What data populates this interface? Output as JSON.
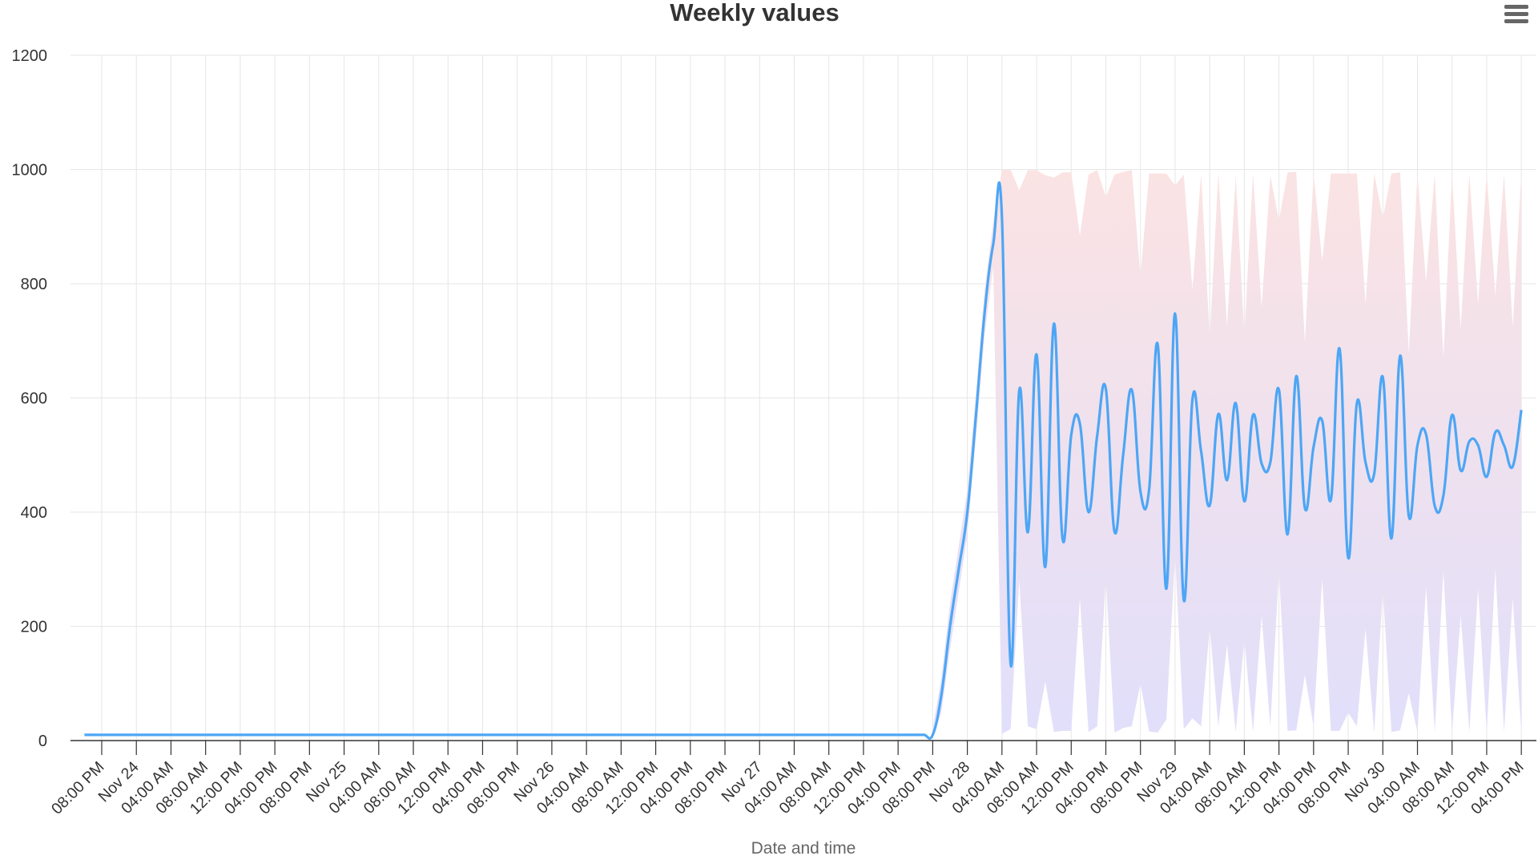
{
  "title": "Weekly values",
  "menu_icon": "hamburger-menu-icon",
  "chart_data": {
    "type": "line",
    "title": "Weekly values",
    "xlabel": "Date and time",
    "ylabel": "",
    "ylim": [
      0,
      1200
    ],
    "yticks": [
      0,
      200,
      400,
      600,
      800,
      1000,
      1200
    ],
    "xticks": [
      "08:00 PM",
      "Nov 24",
      "04:00 AM",
      "08:00 AM",
      "12:00 PM",
      "04:00 PM",
      "08:00 PM",
      "Nov 25",
      "04:00 AM",
      "08:00 AM",
      "12:00 PM",
      "04:00 PM",
      "08:00 PM",
      "Nov 26",
      "04:00 AM",
      "08:00 AM",
      "12:00 PM",
      "04:00 PM",
      "08:00 PM",
      "Nov 27",
      "04:00 AM",
      "08:00 AM",
      "12:00 PM",
      "04:00 PM",
      "08:00 PM",
      "Nov 28",
      "04:00 AM",
      "08:00 AM",
      "12:00 PM",
      "04:00 PM",
      "08:00 PM",
      "Nov 29",
      "04:00 AM",
      "08:00 AM",
      "12:00 PM",
      "04:00 PM",
      "08:00 PM",
      "Nov 30",
      "04:00 AM",
      "08:00 AM",
      "12:00 PM",
      "04:00 PM"
    ],
    "xrange": [
      "Nov 23 20:00",
      "Nov 30 16:00"
    ],
    "grid": {
      "x": true,
      "y": true
    },
    "legend": "none",
    "colors": {
      "line": "#4da6f5",
      "band_top": "#fbe3e3",
      "band_bottom": "#e1dffb",
      "grid": "#e6e6e6",
      "axis": "#333333"
    },
    "series": [
      {
        "type": "spline",
        "points": [
          [
            "Nov 23 18:00",
            10
          ],
          [
            "Nov 23 19:00",
            10
          ],
          [
            "Nov 23 20:00",
            10
          ],
          [
            "Nov 23 21:00",
            10
          ],
          [
            "Nov 23 22:00",
            10
          ],
          [
            "Nov 23 23:00",
            10
          ],
          [
            "Nov 24 00:00",
            10
          ],
          [
            "Nov 24 01:00",
            10
          ],
          [
            "Nov 24 02:00",
            10
          ],
          [
            "Nov 24 03:00",
            10
          ],
          [
            "Nov 24 04:00",
            10
          ],
          [
            "Nov 24 05:00",
            10
          ],
          [
            "Nov 24 06:00",
            10
          ],
          [
            "Nov 24 07:00",
            10
          ],
          [
            "Nov 24 08:00",
            10
          ],
          [
            "Nov 24 09:00",
            10
          ],
          [
            "Nov 24 10:00",
            10
          ],
          [
            "Nov 24 11:00",
            10
          ],
          [
            "Nov 24 12:00",
            10
          ],
          [
            "Nov 24 13:00",
            10
          ],
          [
            "Nov 24 14:00",
            10
          ],
          [
            "Nov 24 15:00",
            10
          ],
          [
            "Nov 24 16:00",
            10
          ],
          [
            "Nov 24 17:00",
            10
          ],
          [
            "Nov 24 18:00",
            10
          ],
          [
            "Nov 24 19:00",
            10
          ],
          [
            "Nov 24 20:00",
            10
          ],
          [
            "Nov 24 21:00",
            10
          ],
          [
            "Nov 24 22:00",
            10
          ],
          [
            "Nov 24 23:00",
            10
          ],
          [
            "Nov 25 00:00",
            10
          ],
          [
            "Nov 25 01:00",
            10
          ],
          [
            "Nov 25 02:00",
            10
          ],
          [
            "Nov 25 03:00",
            10
          ],
          [
            "Nov 25 04:00",
            10
          ],
          [
            "Nov 25 05:00",
            10
          ],
          [
            "Nov 25 06:00",
            10
          ],
          [
            "Nov 25 07:00",
            10
          ],
          [
            "Nov 25 08:00",
            10
          ],
          [
            "Nov 25 09:00",
            10
          ],
          [
            "Nov 25 10:00",
            10
          ],
          [
            "Nov 25 11:00",
            10
          ],
          [
            "Nov 25 12:00",
            10
          ],
          [
            "Nov 25 13:00",
            10
          ],
          [
            "Nov 25 14:00",
            10
          ],
          [
            "Nov 25 15:00",
            10
          ],
          [
            "Nov 25 16:00",
            10
          ],
          [
            "Nov 25 17:00",
            10
          ],
          [
            "Nov 25 18:00",
            10
          ],
          [
            "Nov 25 19:00",
            10
          ],
          [
            "Nov 25 20:00",
            10
          ],
          [
            "Nov 25 21:00",
            10
          ],
          [
            "Nov 25 22:00",
            10
          ],
          [
            "Nov 25 23:00",
            10
          ],
          [
            "Nov 26 00:00",
            10
          ],
          [
            "Nov 26 01:00",
            10
          ],
          [
            "Nov 26 02:00",
            10
          ],
          [
            "Nov 26 03:00",
            10
          ],
          [
            "Nov 26 04:00",
            10
          ],
          [
            "Nov 26 05:00",
            10
          ],
          [
            "Nov 26 06:00",
            10
          ],
          [
            "Nov 26 07:00",
            10
          ],
          [
            "Nov 26 08:00",
            10
          ],
          [
            "Nov 26 09:00",
            10
          ],
          [
            "Nov 26 10:00",
            10
          ],
          [
            "Nov 26 11:00",
            10
          ],
          [
            "Nov 26 12:00",
            10
          ],
          [
            "Nov 26 13:00",
            10
          ],
          [
            "Nov 26 14:00",
            10
          ],
          [
            "Nov 26 15:00",
            10
          ],
          [
            "Nov 26 16:00",
            10
          ],
          [
            "Nov 26 17:00",
            10
          ],
          [
            "Nov 26 18:00",
            10
          ],
          [
            "Nov 26 19:00",
            10
          ],
          [
            "Nov 26 20:00",
            10
          ],
          [
            "Nov 26 21:00",
            10
          ],
          [
            "Nov 26 22:00",
            10
          ],
          [
            "Nov 26 23:00",
            10
          ],
          [
            "Nov 27 00:00",
            10
          ],
          [
            "Nov 27 01:00",
            10
          ],
          [
            "Nov 27 02:00",
            10
          ],
          [
            "Nov 27 03:00",
            10
          ],
          [
            "Nov 27 04:00",
            10
          ],
          [
            "Nov 27 05:00",
            10
          ],
          [
            "Nov 27 06:00",
            10
          ],
          [
            "Nov 27 07:00",
            10
          ],
          [
            "Nov 27 08:00",
            10
          ],
          [
            "Nov 27 09:00",
            10
          ],
          [
            "Nov 27 10:00",
            10
          ],
          [
            "Nov 27 11:00",
            10
          ],
          [
            "Nov 27 12:00",
            10
          ],
          [
            "Nov 27 13:00",
            10
          ],
          [
            "Nov 27 14:00",
            10
          ],
          [
            "Nov 27 15:00",
            10
          ],
          [
            "Nov 27 16:00",
            10
          ],
          [
            "Nov 27 17:00",
            10
          ],
          [
            "Nov 27 18:00",
            10
          ],
          [
            "Nov 27 19:00",
            10
          ],
          [
            "Nov 27 20:00",
            10
          ],
          [
            "Nov 27 21:00",
            80
          ],
          [
            "Nov 27 22:00",
            200
          ],
          [
            "Nov 27 23:00",
            300
          ],
          [
            "Nov 28 00:00",
            400
          ],
          [
            "Nov 28 01:00",
            570
          ],
          [
            "Nov 28 02:00",
            750
          ],
          [
            "Nov 28 03:00",
            870
          ],
          [
            "Nov 28 04:00",
            916
          ],
          [
            "Nov 28 05:00",
            135
          ],
          [
            "Nov 28 06:00",
            613
          ],
          [
            "Nov 28 07:00",
            365
          ],
          [
            "Nov 28 08:00",
            676
          ],
          [
            "Nov 28 09:00",
            304
          ],
          [
            "Nov 28 10:00",
            730
          ],
          [
            "Nov 28 11:00",
            353
          ],
          [
            "Nov 28 12:00",
            535
          ],
          [
            "Nov 28 13:00",
            555
          ],
          [
            "Nov 28 14:00",
            400
          ],
          [
            "Nov 28 15:00",
            534
          ],
          [
            "Nov 28 16:00",
            616
          ],
          [
            "Nov 28 17:00",
            366
          ],
          [
            "Nov 28 18:00",
            500
          ],
          [
            "Nov 28 19:00",
            614
          ],
          [
            "Nov 28 20:00",
            436
          ],
          [
            "Nov 28 21:00",
            439
          ],
          [
            "Nov 28 22:00",
            693
          ],
          [
            "Nov 28 23:00",
            266
          ],
          [
            "Nov 29 00:00",
            748
          ],
          [
            "Nov 29 01:00",
            246
          ],
          [
            "Nov 29 02:00",
            597
          ],
          [
            "Nov 29 03:00",
            507
          ],
          [
            "Nov 29 04:00",
            412
          ],
          [
            "Nov 29 05:00",
            572
          ],
          [
            "Nov 29 06:00",
            456
          ],
          [
            "Nov 29 07:00",
            591
          ],
          [
            "Nov 29 08:00",
            419
          ],
          [
            "Nov 29 09:00",
            570
          ],
          [
            "Nov 29 10:00",
            485
          ],
          [
            "Nov 29 11:00",
            487
          ],
          [
            "Nov 29 12:00",
            614
          ],
          [
            "Nov 29 13:00",
            361
          ],
          [
            "Nov 29 14:00",
            638
          ],
          [
            "Nov 29 15:00",
            407
          ],
          [
            "Nov 29 16:00",
            514
          ],
          [
            "Nov 29 17:00",
            560
          ],
          [
            "Nov 29 18:00",
            422
          ],
          [
            "Nov 29 19:00",
            686
          ],
          [
            "Nov 29 20:00",
            320
          ],
          [
            "Nov 29 21:00",
            591
          ],
          [
            "Nov 29 22:00",
            487
          ],
          [
            "Nov 29 23:00",
            467
          ],
          [
            "Nov 30 00:00",
            636
          ],
          [
            "Nov 30 01:00",
            354
          ],
          [
            "Nov 30 02:00",
            674
          ],
          [
            "Nov 30 03:00",
            393
          ],
          [
            "Nov 30 04:00",
            517
          ],
          [
            "Nov 30 05:00",
            536
          ],
          [
            "Nov 30 06:00",
            411
          ],
          [
            "Nov 30 07:00",
            429
          ],
          [
            "Nov 30 08:00",
            570
          ],
          [
            "Nov 30 09:00",
            473
          ],
          [
            "Nov 30 10:00",
            524
          ],
          [
            "Nov 30 11:00",
            517
          ],
          [
            "Nov 30 12:00",
            462
          ],
          [
            "Nov 30 13:00",
            540
          ],
          [
            "Nov 30 14:00",
            517
          ],
          [
            "Nov 30 15:00",
            480
          ],
          [
            "Nov 30 16:00",
            579
          ]
        ]
      },
      {
        "type": "arearange",
        "points": [
          [
            "Nov 27 20:00",
            5,
            20
          ],
          [
            "Nov 27 21:00",
            50,
            110
          ],
          [
            "Nov 27 22:00",
            160,
            240
          ],
          [
            "Nov 27 23:00",
            260,
            340
          ],
          [
            "Nov 28 00:00",
            360,
            440
          ],
          [
            "Nov 28 01:00",
            530,
            610
          ],
          [
            "Nov 28 02:00",
            710,
            790
          ],
          [
            "Nov 28 03:00",
            830,
            910
          ],
          [
            "Nov 28 04:00",
            12,
            999
          ],
          [
            "Nov 28 05:00",
            20,
            1000
          ],
          [
            "Nov 28 06:00",
            280,
            964
          ],
          [
            "Nov 28 07:00",
            25,
            999
          ],
          [
            "Nov 28 08:00",
            20,
            999
          ],
          [
            "Nov 28 09:00",
            103,
            990
          ],
          [
            "Nov 28 10:00",
            15,
            986
          ],
          [
            "Nov 28 11:00",
            17,
            995
          ],
          [
            "Nov 28 12:00",
            17,
            995
          ],
          [
            "Nov 28 13:00",
            249,
            884
          ],
          [
            "Nov 28 14:00",
            15,
            991
          ],
          [
            "Nov 28 15:00",
            25,
            999
          ],
          [
            "Nov 28 16:00",
            283,
            952
          ],
          [
            "Nov 28 17:00",
            14,
            991
          ],
          [
            "Nov 28 18:00",
            22,
            996
          ],
          [
            "Nov 28 19:00",
            25,
            999
          ],
          [
            "Nov 28 20:00",
            100,
            813
          ],
          [
            "Nov 28 21:00",
            16,
            993
          ],
          [
            "Nov 28 22:00",
            14,
            993
          ],
          [
            "Nov 28 23:00",
            37,
            993
          ],
          [
            "Nov 29 00:00",
            324,
            972
          ],
          [
            "Nov 29 01:00",
            20,
            991
          ],
          [
            "Nov 29 02:00",
            39,
            789
          ],
          [
            "Nov 29 03:00",
            25,
            993
          ],
          [
            "Nov 29 04:00",
            198,
            704
          ],
          [
            "Nov 29 05:00",
            25,
            996
          ],
          [
            "Nov 29 06:00",
            168,
            725
          ],
          [
            "Nov 29 07:00",
            15,
            989
          ],
          [
            "Nov 29 08:00",
            175,
            711
          ],
          [
            "Nov 29 09:00",
            15,
            993
          ],
          [
            "Nov 29 10:00",
            219,
            759
          ],
          [
            "Nov 29 11:00",
            25,
            989
          ],
          [
            "Nov 29 12:00",
            297,
            911
          ],
          [
            "Nov 29 13:00",
            17,
            995
          ],
          [
            "Nov 29 14:00",
            18,
            996
          ],
          [
            "Nov 29 15:00",
            115,
            697
          ],
          [
            "Nov 29 16:00",
            25,
            993
          ],
          [
            "Nov 29 17:00",
            283,
            840
          ],
          [
            "Nov 29 18:00",
            17,
            993
          ],
          [
            "Nov 29 19:00",
            17,
            993
          ],
          [
            "Nov 29 20:00",
            49,
            993
          ],
          [
            "Nov 29 21:00",
            25,
            993
          ],
          [
            "Nov 29 22:00",
            195,
            765
          ],
          [
            "Nov 29 23:00",
            14,
            993
          ],
          [
            "Nov 30 00:00",
            263,
            915
          ],
          [
            "Nov 30 01:00",
            15,
            993
          ],
          [
            "Nov 30 02:00",
            18,
            995
          ],
          [
            "Nov 30 03:00",
            83,
            677
          ],
          [
            "Nov 30 04:00",
            15,
            993
          ],
          [
            "Nov 30 05:00",
            270,
            803
          ],
          [
            "Nov 30 06:00",
            15,
            993
          ],
          [
            "Nov 30 07:00",
            297,
            670
          ],
          [
            "Nov 30 08:00",
            15,
            993
          ],
          [
            "Nov 30 09:00",
            219,
            721
          ],
          [
            "Nov 30 10:00",
            15,
            993
          ],
          [
            "Nov 30 11:00",
            266,
            765
          ],
          [
            "Nov 30 12:00",
            15,
            993
          ],
          [
            "Nov 30 13:00",
            300,
            779
          ],
          [
            "Nov 30 14:00",
            15,
            993
          ],
          [
            "Nov 30 15:00",
            249,
            725
          ],
          [
            "Nov 30 16:00",
            15,
            993
          ]
        ]
      }
    ]
  }
}
